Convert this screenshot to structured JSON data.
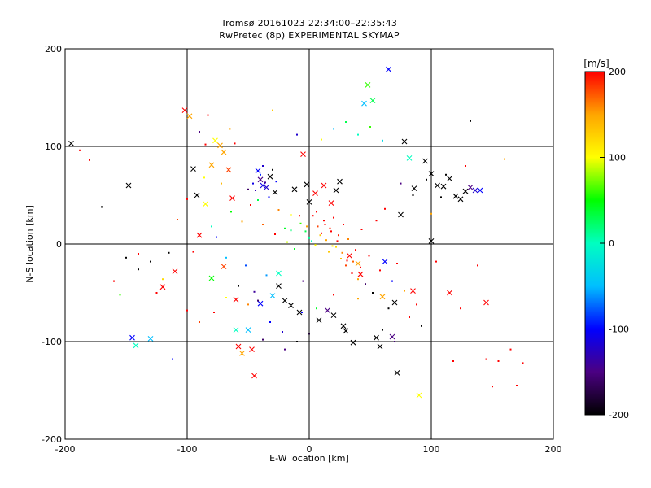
{
  "chart_data": {
    "type": "scatter",
    "title": "Tromsø 20161023 22:34:00–22:35:43",
    "subtitle": "RwPretec (8p) EXPERIMENTAL SKYMAP",
    "xlabel": "E-W location [km]",
    "ylabel": "N-S location [km]",
    "xlim": [
      -200,
      200
    ],
    "ylim": [
      -200,
      200
    ],
    "xticks": [
      "-200",
      "-100",
      "0",
      "100",
      "200"
    ],
    "yticks": [
      "-200",
      "-100",
      "0",
      "100",
      "200"
    ],
    "grid": true,
    "colorbar": {
      "label": "[m/s]",
      "min": -200,
      "max": 200,
      "ticks": [
        "-200",
        "-100",
        "0",
        "100",
        "200"
      ],
      "colormap": [
        "#000000",
        "#4b0082",
        "#0000ff",
        "#00bfff",
        "#00ffc0",
        "#00ff00",
        "#ffff00",
        "#ffa500",
        "#ff0000"
      ]
    },
    "series": [
      {
        "marker": "x",
        "points": [
          [
            -195,
            103,
            -200
          ],
          [
            -148,
            60,
            -200
          ],
          [
            -145,
            -96,
            -100
          ],
          [
            -142,
            -104,
            0
          ],
          [
            -130,
            -97,
            -50
          ],
          [
            -102,
            137,
            200
          ],
          [
            -98,
            131,
            150
          ],
          [
            -95,
            77,
            -200
          ],
          [
            -92,
            50,
            -200
          ],
          [
            -90,
            9,
            200
          ],
          [
            -85,
            41,
            100
          ],
          [
            -80,
            81,
            150
          ],
          [
            -77,
            106,
            100
          ],
          [
            -73,
            101,
            150
          ],
          [
            -70,
            94,
            150
          ],
          [
            -66,
            76,
            180
          ],
          [
            -63,
            47,
            200
          ],
          [
            -60,
            -88,
            0
          ],
          [
            -58,
            -105,
            200
          ],
          [
            -55,
            -112,
            150
          ],
          [
            -50,
            -88,
            -50
          ],
          [
            -47,
            -108,
            200
          ],
          [
            -45,
            -135,
            200
          ],
          [
            -42,
            75,
            -100
          ],
          [
            -40,
            66,
            -150
          ],
          [
            -38,
            60,
            -110
          ],
          [
            -35,
            58,
            -120
          ],
          [
            -32,
            69,
            -200
          ],
          [
            -28,
            53,
            -200
          ],
          [
            -25,
            -30,
            0
          ],
          [
            -20,
            -58,
            -200
          ],
          [
            -15,
            -63,
            -200
          ],
          [
            -12,
            56,
            -200
          ],
          [
            -8,
            -70,
            -200
          ],
          [
            -5,
            92,
            200
          ],
          [
            -2,
            61,
            -200
          ],
          [
            0,
            43,
            -200
          ],
          [
            5,
            52,
            200
          ],
          [
            8,
            -78,
            -200
          ],
          [
            12,
            60,
            200
          ],
          [
            15,
            -68,
            -150
          ],
          [
            18,
            42,
            200
          ],
          [
            20,
            -73,
            -200
          ],
          [
            22,
            55,
            -200
          ],
          [
            25,
            64,
            -200
          ],
          [
            28,
            -84,
            -200
          ],
          [
            30,
            -89,
            -200
          ],
          [
            33,
            -12,
            200
          ],
          [
            36,
            -101,
            -200
          ],
          [
            40,
            -20,
            150
          ],
          [
            42,
            -31,
            200
          ],
          [
            45,
            144,
            -50
          ],
          [
            48,
            163,
            60
          ],
          [
            52,
            147,
            30
          ],
          [
            55,
            -96,
            -200
          ],
          [
            58,
            -105,
            -200
          ],
          [
            62,
            -18,
            -100
          ],
          [
            65,
            179,
            -100
          ],
          [
            68,
            -95,
            -150
          ],
          [
            72,
            -132,
            -200
          ],
          [
            78,
            105,
            -200
          ],
          [
            82,
            88,
            0
          ],
          [
            86,
            57,
            -200
          ],
          [
            90,
            -155,
            100
          ],
          [
            95,
            85,
            -200
          ],
          [
            100,
            72,
            -200
          ],
          [
            105,
            60,
            -200
          ],
          [
            110,
            59,
            -200
          ],
          [
            115,
            67,
            -200
          ],
          [
            120,
            49,
            -200
          ],
          [
            124,
            46,
            -200
          ],
          [
            128,
            54,
            -200
          ],
          [
            132,
            58,
            -150
          ],
          [
            136,
            55,
            -120
          ],
          [
            140,
            55,
            -100
          ],
          [
            145,
            -60,
            200
          ],
          [
            -25,
            -43,
            -200
          ],
          [
            -30,
            -53,
            -50
          ],
          [
            -40,
            -61,
            -100
          ],
          [
            -60,
            -57,
            200
          ],
          [
            -70,
            -23,
            180
          ],
          [
            -80,
            -35,
            50
          ],
          [
            -110,
            -28,
            200
          ],
          [
            -120,
            -44,
            200
          ],
          [
            60,
            -54,
            150
          ],
          [
            70,
            -60,
            -200
          ],
          [
            75,
            30,
            -200
          ],
          [
            85,
            -48,
            200
          ],
          [
            100,
            3,
            -200
          ],
          [
            115,
            -50,
            200
          ]
        ]
      },
      {
        "marker": "dot",
        "points": [
          [
            -188,
            96,
            200
          ],
          [
            -180,
            86,
            200
          ],
          [
            -170,
            38,
            -200
          ],
          [
            -160,
            -38,
            200
          ],
          [
            -155,
            -52,
            60
          ],
          [
            -150,
            -14,
            -200
          ],
          [
            -140,
            -26,
            -200
          ],
          [
            -130,
            -18,
            -200
          ],
          [
            -120,
            -36,
            120
          ],
          [
            -115,
            -9,
            -200
          ],
          [
            -108,
            25,
            180
          ],
          [
            -100,
            46,
            200
          ],
          [
            -95,
            -8,
            200
          ],
          [
            -90,
            115,
            -150
          ],
          [
            -86,
            68,
            100
          ],
          [
            -83,
            132,
            200
          ],
          [
            -80,
            18,
            0
          ],
          [
            -76,
            7,
            -100
          ],
          [
            -72,
            62,
            140
          ],
          [
            -68,
            -14,
            -50
          ],
          [
            -64,
            33,
            50
          ],
          [
            -61,
            103,
            200
          ],
          [
            -58,
            -43,
            -200
          ],
          [
            -55,
            23,
            150
          ],
          [
            -52,
            -22,
            -80
          ],
          [
            -48,
            40,
            200
          ],
          [
            -45,
            -49,
            -140
          ],
          [
            -42,
            -58,
            -160
          ],
          [
            -38,
            20,
            170
          ],
          [
            -35,
            -32,
            -60
          ],
          [
            -32,
            -80,
            -100
          ],
          [
            -28,
            10,
            200
          ],
          [
            -25,
            35,
            160
          ],
          [
            -22,
            -90,
            -120
          ],
          [
            -18,
            2,
            90
          ],
          [
            -15,
            14,
            20
          ],
          [
            -12,
            -5,
            40
          ],
          [
            -8,
            29,
            200
          ],
          [
            -5,
            -38,
            -150
          ],
          [
            -2,
            18,
            150
          ],
          [
            0,
            6,
            10
          ],
          [
            3,
            29,
            200
          ],
          [
            5,
            -1,
            100
          ],
          [
            7,
            18,
            180
          ],
          [
            10,
            11,
            200
          ],
          [
            12,
            24,
            200
          ],
          [
            14,
            4,
            150
          ],
          [
            16,
            -8,
            130
          ],
          [
            18,
            13,
            200
          ],
          [
            20,
            27,
            200
          ],
          [
            22,
            -3,
            120
          ],
          [
            24,
            9,
            190
          ],
          [
            26,
            -15,
            140
          ],
          [
            28,
            20,
            200
          ],
          [
            30,
            -22,
            180
          ],
          [
            32,
            5,
            160
          ],
          [
            35,
            -30,
            200
          ],
          [
            38,
            -6,
            200
          ],
          [
            40,
            -36,
            150
          ],
          [
            43,
            15,
            200
          ],
          [
            46,
            -41,
            -160
          ],
          [
            49,
            -12,
            200
          ],
          [
            52,
            -50,
            -200
          ],
          [
            55,
            24,
            200
          ],
          [
            58,
            -27,
            200
          ],
          [
            62,
            36,
            200
          ],
          [
            65,
            -66,
            -200
          ],
          [
            68,
            -38,
            -100
          ],
          [
            72,
            -20,
            200
          ],
          [
            75,
            62,
            -150
          ],
          [
            78,
            -48,
            150
          ],
          [
            82,
            -75,
            200
          ],
          [
            85,
            50,
            -200
          ],
          [
            88,
            -62,
            200
          ],
          [
            92,
            -84,
            -200
          ],
          [
            96,
            66,
            -200
          ],
          [
            100,
            31,
            150
          ],
          [
            104,
            -18,
            200
          ],
          [
            108,
            48,
            -200
          ],
          [
            112,
            71,
            -200
          ],
          [
            118,
            -120,
            200
          ],
          [
            124,
            -66,
            200
          ],
          [
            128,
            80,
            200
          ],
          [
            132,
            126,
            -200
          ],
          [
            138,
            -22,
            200
          ],
          [
            145,
            -118,
            200
          ],
          [
            150,
            -146,
            200
          ],
          [
            155,
            -120,
            200
          ],
          [
            160,
            87,
            150
          ],
          [
            165,
            -108,
            200
          ],
          [
            170,
            -145,
            200
          ],
          [
            175,
            -122,
            200
          ],
          [
            -85,
            102,
            200
          ],
          [
            -65,
            118,
            150
          ],
          [
            -30,
            137,
            130
          ],
          [
            -10,
            112,
            -120
          ],
          [
            10,
            107,
            100
          ],
          [
            20,
            118,
            -50
          ],
          [
            30,
            125,
            30
          ],
          [
            40,
            112,
            0
          ],
          [
            50,
            120,
            60
          ],
          [
            60,
            106,
            -30
          ],
          [
            -100,
            -68,
            200
          ],
          [
            -90,
            -80,
            180
          ],
          [
            -20,
            -108,
            -150
          ],
          [
            -10,
            -100,
            -200
          ],
          [
            0,
            -92,
            -180
          ],
          [
            20,
            -52,
            200
          ],
          [
            40,
            -56,
            150
          ],
          [
            60,
            -88,
            -200
          ],
          [
            70,
            -100,
            -150
          ],
          [
            -140,
            -10,
            200
          ],
          [
            -125,
            -50,
            200
          ],
          [
            -112,
            -118,
            -100
          ],
          [
            -78,
            -70,
            200
          ],
          [
            -68,
            -55,
            100
          ],
          [
            -50,
            -62,
            160
          ],
          [
            -38,
            -98,
            -160
          ],
          [
            -6,
            -70,
            -100
          ],
          [
            6,
            -66,
            40
          ],
          [
            -44,
            55,
            -130
          ],
          [
            -40,
            71,
            -90
          ],
          [
            -36,
            63,
            -140
          ],
          [
            -33,
            48,
            -100
          ],
          [
            -46,
            62,
            -110
          ],
          [
            -50,
            56,
            -160
          ],
          [
            -42,
            45,
            30
          ],
          [
            -38,
            80,
            -120
          ],
          [
            -30,
            76,
            -200
          ],
          [
            -27,
            64,
            -100
          ],
          [
            9,
            9,
            130
          ],
          [
            13,
            20,
            200
          ],
          [
            17,
            16,
            190
          ],
          [
            19,
            -2,
            110
          ],
          [
            23,
            3,
            200
          ],
          [
            27,
            -9,
            160
          ],
          [
            31,
            -17,
            200
          ],
          [
            36,
            -18,
            170
          ],
          [
            42,
            -24,
            200
          ],
          [
            -3,
            13,
            30
          ],
          [
            -7,
            21,
            60
          ],
          [
            2,
            3,
            0
          ],
          [
            -15,
            30,
            100
          ],
          [
            -20,
            16,
            40
          ],
          [
            6,
            33,
            200
          ]
        ]
      }
    ]
  }
}
